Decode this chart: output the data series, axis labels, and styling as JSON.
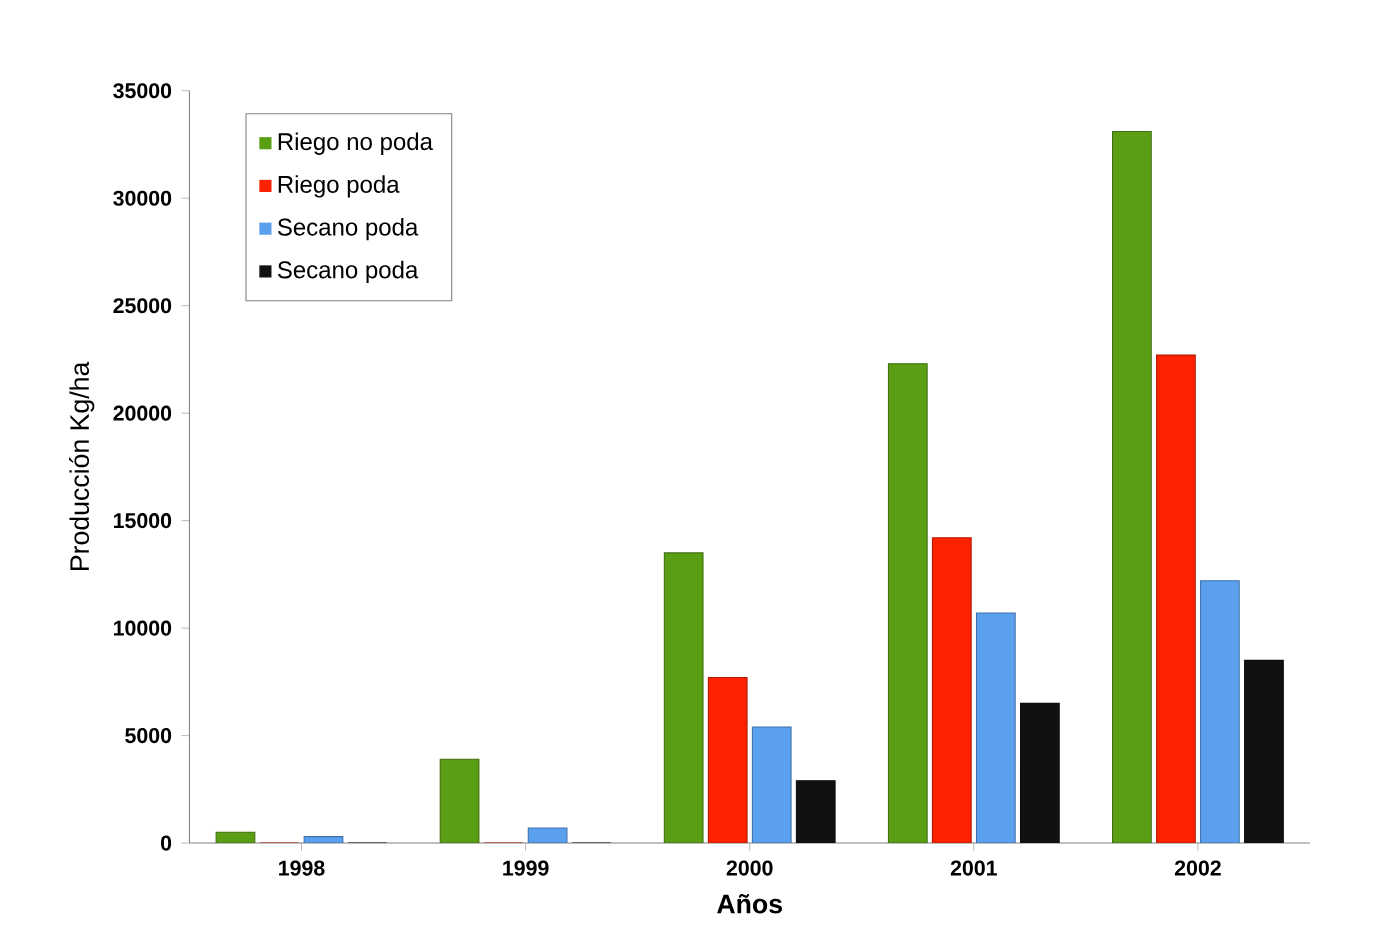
{
  "chart_data": {
    "type": "bar",
    "xlabel": "Años",
    "ylabel": "Producción Kg/ha",
    "categories": [
      "1998",
      "1999",
      "2000",
      "2001",
      "2002"
    ],
    "series": [
      {
        "name": "Riego no poda",
        "color": "#5a9e14",
        "values": [
          500,
          3900,
          13500,
          22300,
          33100
        ]
      },
      {
        "name": "Riego poda",
        "color": "#ff2200",
        "values": [
          0,
          0,
          7700,
          14200,
          22700
        ]
      },
      {
        "name": "Secano poda",
        "color": "#5aa0ee",
        "values": [
          300,
          700,
          5400,
          10700,
          12200
        ]
      },
      {
        "name": "Secano poda",
        "color": "#111111",
        "values": [
          0,
          0,
          2900,
          6500,
          8500
        ]
      }
    ],
    "ylim": [
      0,
      35000
    ],
    "yticks": [
      0,
      5000,
      10000,
      15000,
      20000,
      25000,
      30000,
      35000
    ],
    "grid": false,
    "legend": "top left"
  }
}
